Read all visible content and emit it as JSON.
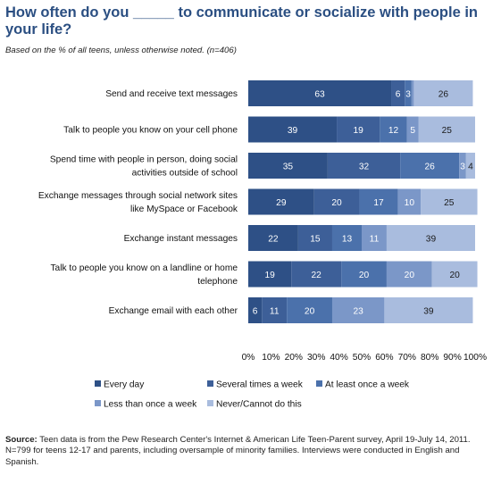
{
  "title": "How often do you _____ to communicate or socialize with people in your life?",
  "subtitle": "Based on the % of all teens, unless otherwise noted. (n=406)",
  "source": {
    "label": "Source:",
    "text": "Teen data is from the Pew Research Center's Internet & American Life Teen-Parent survey, April 19-July 14, 2011. N=799 for teens 12-17 and parents, including oversample of minority families. Interviews were conducted in English and Spanish."
  },
  "chart_data": {
    "type": "bar",
    "orientation": "horizontal",
    "stacked": true,
    "categories": [
      [
        "Send and receive text messages"
      ],
      [
        "Talk to people you know on your cell phone"
      ],
      [
        "Spend time with people in person, doing social",
        "activities outside of school"
      ],
      [
        "Exchange messages through social network sites",
        "like MySpace or Facebook"
      ],
      [
        "Exchange instant messages"
      ],
      [
        "Talk to people you know on a landline or home",
        "telephone"
      ],
      [
        "Exchange email with each other"
      ]
    ],
    "series": [
      {
        "name": "Every day",
        "color": "#2e5086",
        "values": [
          63,
          39,
          35,
          29,
          22,
          19,
          6
        ]
      },
      {
        "name": "Several times a week",
        "color": "#3d5f98",
        "values": [
          6,
          19,
          32,
          20,
          15,
          22,
          11
        ]
      },
      {
        "name": "At least once a week",
        "color": "#4b71ab",
        "values": [
          3,
          12,
          26,
          17,
          13,
          20,
          20
        ]
      },
      {
        "name": "Less than once a week",
        "color": "#7b97c8",
        "values": [
          1,
          5,
          3,
          10,
          11,
          20,
          23
        ]
      },
      {
        "name": "Never/Cannot do this",
        "color": "#a9bcde",
        "values": [
          26,
          25,
          4,
          25,
          39,
          20,
          39
        ]
      }
    ],
    "value_labels": [
      [
        "63",
        "6",
        "3",
        "",
        "26"
      ],
      [
        "39",
        "19",
        "12",
        "5",
        "25"
      ],
      [
        "35",
        "32",
        "26",
        "3",
        "4"
      ],
      [
        "29",
        "20",
        "17",
        "10",
        "25"
      ],
      [
        "22",
        "15",
        "13",
        "11",
        "39"
      ],
      [
        "19",
        "22",
        "20",
        "20",
        "20"
      ],
      [
        "6",
        "11",
        "20",
        "23",
        "39"
      ]
    ],
    "xlim": [
      0,
      100
    ],
    "xticks": [
      "0%",
      "10%",
      "20%",
      "30%",
      "40%",
      "50%",
      "60%",
      "70%",
      "80%",
      "90%",
      "100%"
    ],
    "legend_position": "bottom",
    "grid": false
  }
}
